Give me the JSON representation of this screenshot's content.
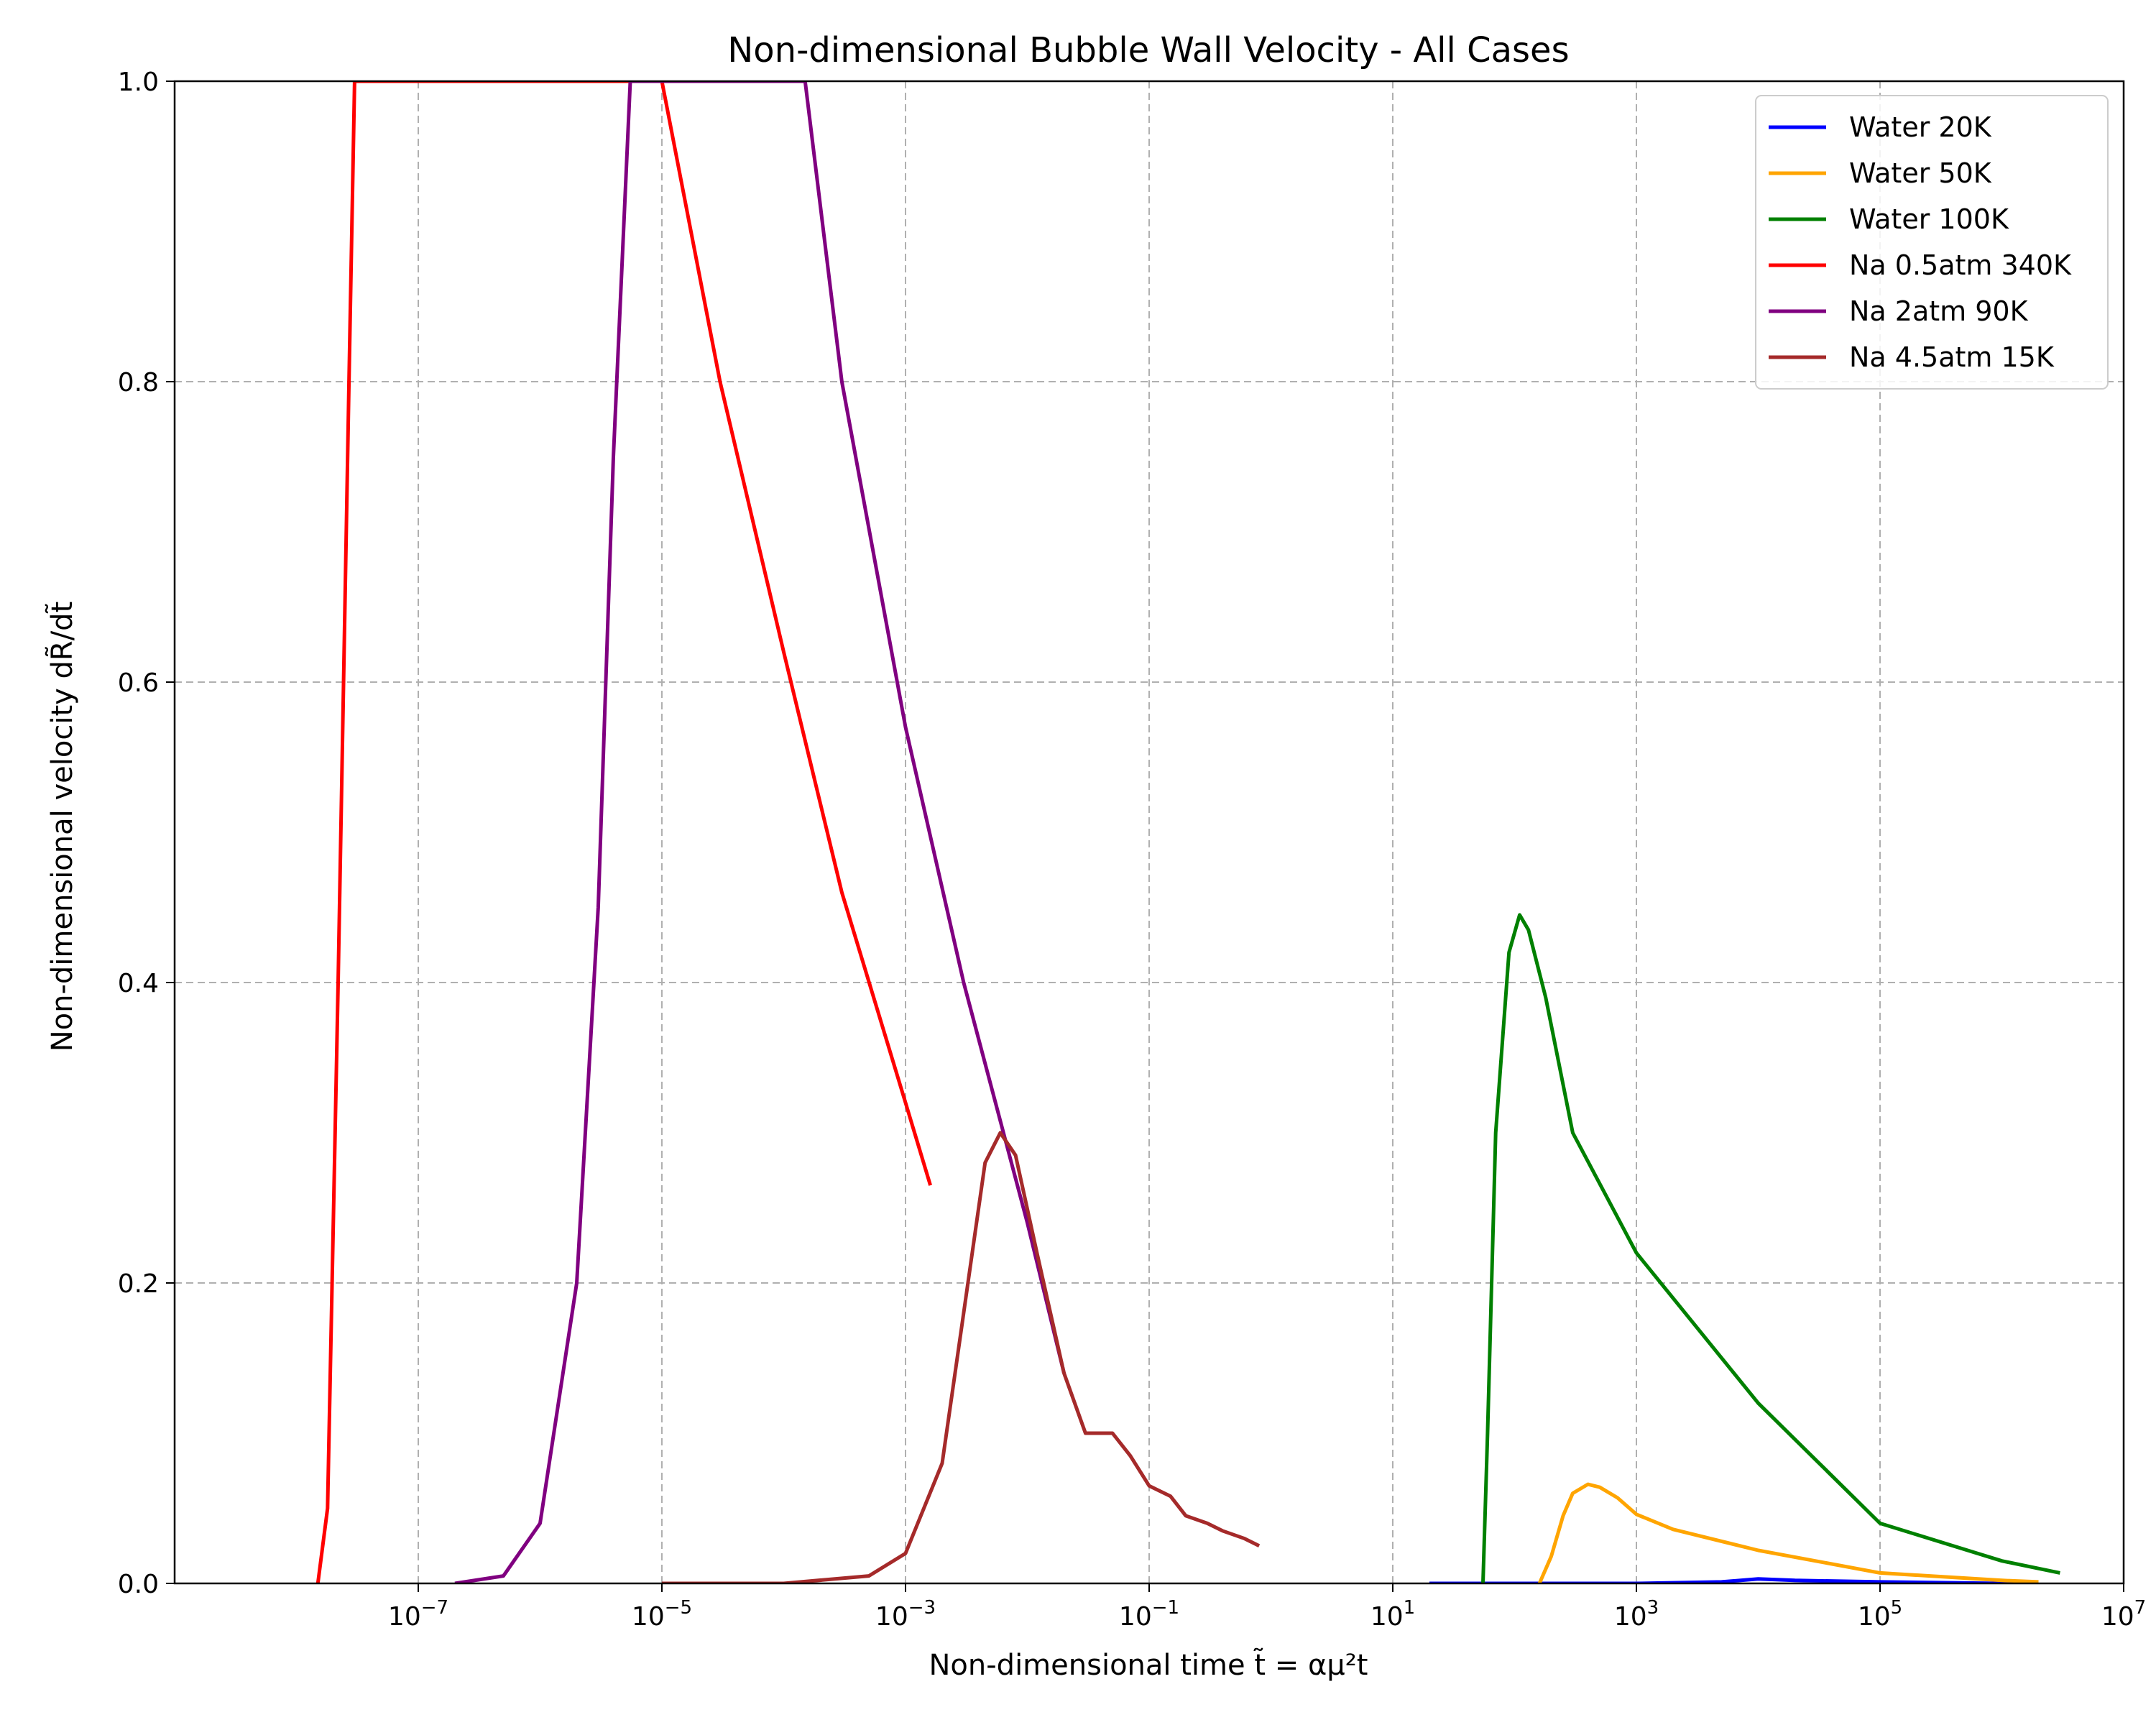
{
  "chart_data": {
    "type": "line",
    "title": "Non-dimensional Bubble Wall Velocity - All Cases",
    "xlabel": "Non-dimensional time t̃ = αμ²t",
    "ylabel": "Non-dimensional velocity dR̃/dt̃",
    "xscale": "log",
    "xlim": [
      1e-09,
      10000000.0
    ],
    "ylim": [
      0,
      1
    ],
    "grid": true,
    "legend_position": "top-right",
    "x_ticks": [
      {
        "label_base": "10",
        "label_exp": "−7",
        "value": 1e-07
      },
      {
        "label_base": "10",
        "label_exp": "−5",
        "value": 1e-05
      },
      {
        "label_base": "10",
        "label_exp": "−3",
        "value": 0.001
      },
      {
        "label_base": "10",
        "label_exp": "−1",
        "value": 0.1
      },
      {
        "label_base": "10",
        "label_exp": "1",
        "value": 10
      },
      {
        "label_base": "10",
        "label_exp": "3",
        "value": 1000
      },
      {
        "label_base": "10",
        "label_exp": "5",
        "value": 100000
      },
      {
        "label_base": "10",
        "label_exp": "7",
        "value": 10000000
      }
    ],
    "y_ticks": [
      {
        "label": "0.0",
        "value": 0.0
      },
      {
        "label": "0.2",
        "value": 0.2
      },
      {
        "label": "0.4",
        "value": 0.4
      },
      {
        "label": "0.6",
        "value": 0.6
      },
      {
        "label": "0.8",
        "value": 0.8
      },
      {
        "label": "1.0",
        "value": 1.0
      }
    ],
    "series": [
      {
        "name": "Water 20K",
        "color": "#0000ff",
        "points": [
          [
            20,
            0.0
          ],
          [
            1000,
            0.0
          ],
          [
            5000,
            0.001
          ],
          [
            10000,
            0.003
          ],
          [
            20000,
            0.002
          ],
          [
            100000,
            0.001
          ],
          [
            1000000,
            0.0
          ],
          [
            2000000,
            0.0
          ]
        ]
      },
      {
        "name": "Water 50K",
        "color": "#ffa500",
        "points": [
          [
            160,
            0.0
          ],
          [
            200,
            0.018
          ],
          [
            250,
            0.045
          ],
          [
            300,
            0.06
          ],
          [
            400,
            0.066
          ],
          [
            500,
            0.064
          ],
          [
            700,
            0.057
          ],
          [
            1000,
            0.046
          ],
          [
            2000,
            0.036
          ],
          [
            10000,
            0.022
          ],
          [
            100000,
            0.007
          ],
          [
            1000000,
            0.002
          ],
          [
            2000000,
            0.001
          ]
        ]
      },
      {
        "name": "Water 100K",
        "color": "#008000",
        "points": [
          [
            55,
            0.0
          ],
          [
            60,
            0.1
          ],
          [
            70,
            0.3
          ],
          [
            90,
            0.42
          ],
          [
            110,
            0.445
          ],
          [
            130,
            0.435
          ],
          [
            180,
            0.39
          ],
          [
            300,
            0.3
          ],
          [
            1000,
            0.22
          ],
          [
            10000,
            0.12
          ],
          [
            100000,
            0.04
          ],
          [
            1000000,
            0.015
          ],
          [
            3000000,
            0.007
          ]
        ]
      },
      {
        "name": "Na 0.5atm 340K",
        "color": "#ff0000",
        "points": [
          [
            1.5e-08,
            0.0
          ],
          [
            1.8e-08,
            0.05
          ],
          [
            2.2e-08,
            0.4
          ],
          [
            2.7e-08,
            0.8
          ],
          [
            3e-08,
            1.0
          ],
          [
            1e-05,
            1.0
          ],
          [
            3e-05,
            0.8
          ],
          [
            0.0001,
            0.62
          ],
          [
            0.0003,
            0.46
          ],
          [
            0.001,
            0.32
          ],
          [
            0.0016,
            0.265
          ]
        ]
      },
      {
        "name": "Na 2atm 90K",
        "color": "#800080",
        "points": [
          [
            2e-07,
            0.0
          ],
          [
            5e-07,
            0.005
          ],
          [
            1e-06,
            0.04
          ],
          [
            2e-06,
            0.2
          ],
          [
            3e-06,
            0.45
          ],
          [
            4e-06,
            0.75
          ],
          [
            5.5e-06,
            1.0
          ],
          [
            0.00015,
            1.0
          ],
          [
            0.0003,
            0.8
          ],
          [
            0.001,
            0.57
          ],
          [
            0.003,
            0.4
          ],
          [
            0.01,
            0.24
          ],
          [
            0.02,
            0.14
          ]
        ]
      },
      {
        "name": "Na 4.5atm 15K",
        "color": "#a52a2a",
        "points": [
          [
            1e-05,
            0.0
          ],
          [
            0.0001,
            0.0
          ],
          [
            0.0005,
            0.005
          ],
          [
            0.001,
            0.02
          ],
          [
            0.002,
            0.08
          ],
          [
            0.003,
            0.18
          ],
          [
            0.0045,
            0.28
          ],
          [
            0.006,
            0.3
          ],
          [
            0.008,
            0.285
          ],
          [
            0.012,
            0.22
          ],
          [
            0.02,
            0.14
          ],
          [
            0.03,
            0.1
          ],
          [
            0.05,
            0.1
          ],
          [
            0.07,
            0.085
          ],
          [
            0.1,
            0.065
          ],
          [
            0.15,
            0.058
          ],
          [
            0.2,
            0.045
          ],
          [
            0.3,
            0.04
          ],
          [
            0.4,
            0.035
          ],
          [
            0.6,
            0.03
          ],
          [
            0.8,
            0.025
          ]
        ]
      }
    ]
  }
}
